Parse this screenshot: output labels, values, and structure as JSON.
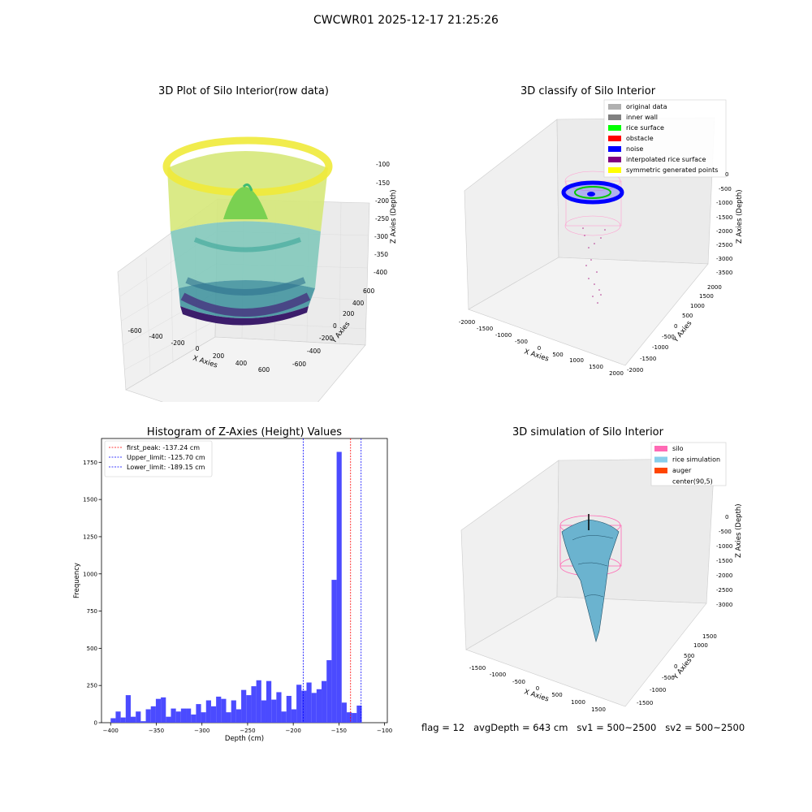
{
  "figure": {
    "suptitle": "CWCWR01 2025-12-17 21:25:26",
    "status": "flag = 12   avgDepth = 643 cm   sv1 = 500~2500   sv2 = 500~2500"
  },
  "panels": {
    "raw": {
      "title": "3D Plot of Silo Interior(row data)",
      "xlabel": "X Axies",
      "ylabel": "Y Axies",
      "zlabel": "Z Axies (Depth)",
      "xticks": [
        "-600",
        "-400",
        "-200",
        "0",
        "200",
        "400",
        "600"
      ],
      "yticks": [
        "-600",
        "-400",
        "-200",
        "0",
        "200",
        "400",
        "600"
      ],
      "zticks": [
        "-100",
        "-150",
        "-200",
        "-250",
        "-300",
        "-350",
        "-400"
      ]
    },
    "classify": {
      "title": "3D classify of Silo Interior",
      "xlabel": "X Axies",
      "ylabel": "Y Axies",
      "zlabel": "Z Axies (Depth)",
      "xticks": [
        "-2000",
        "-1500",
        "-1000",
        "-500",
        "0",
        "500",
        "1000",
        "1500",
        "2000"
      ],
      "yticks": [
        "-2000",
        "-1500",
        "-1000",
        "-500",
        "0",
        "500",
        "1000",
        "1500",
        "2000"
      ],
      "zticks": [
        "0",
        "-500",
        "-1000",
        "-1500",
        "-2000",
        "-2500",
        "-3000",
        "-3500"
      ],
      "legend": [
        {
          "label": "original data",
          "color": "#b0b0b0"
        },
        {
          "label": "inner wall",
          "color": "#808080"
        },
        {
          "label": "rice surface",
          "color": "#00ff00"
        },
        {
          "label": "obstacle",
          "color": "#ff0000"
        },
        {
          "label": "noise",
          "color": "#0000ff"
        },
        {
          "label": "interpolated rice surface",
          "color": "#800080"
        },
        {
          "label": "symmetric generated points",
          "color": "#ffff00"
        }
      ]
    },
    "simulation": {
      "title": "3D simulation of Silo Interior",
      "xlabel": "X Axies",
      "ylabel": "Y Axies",
      "zlabel": "Z Axies (Depth)",
      "xticks": [
        "-1500",
        "-1000",
        "-500",
        "0",
        "500",
        "1000",
        "1500"
      ],
      "yticks": [
        "-1500",
        "-1000",
        "-500",
        "0",
        "500",
        "1000",
        "1500"
      ],
      "zticks": [
        "0",
        "-500",
        "-1000",
        "-1500",
        "-2000",
        "-2500",
        "-3000"
      ],
      "legend": [
        {
          "label": "silo",
          "color": "#ff69b4"
        },
        {
          "label": "rice simulation",
          "color": "#87ceeb"
        },
        {
          "label": "auger",
          "color": "#ff4500"
        },
        {
          "label": "center(90,5)",
          "color": "none"
        }
      ]
    }
  },
  "chart_data": [
    {
      "type": "histogram",
      "title": "Histogram of Z-Axies (Height) Values",
      "xlabel": "Depth (cm)",
      "ylabel": "Frequency",
      "xlim": [
        -410,
        -97
      ],
      "ylim": [
        0,
        1910
      ],
      "xticks": [
        -400,
        -350,
        -300,
        -250,
        -200,
        -150,
        -100
      ],
      "yticks": [
        0,
        250,
        500,
        750,
        1000,
        1250,
        1500,
        1750
      ],
      "bar_color": "#4b4bff",
      "bin_start": -400,
      "bin_width": 5.5,
      "counts": [
        30,
        75,
        35,
        185,
        40,
        75,
        10,
        90,
        110,
        160,
        170,
        40,
        95,
        75,
        95,
        95,
        55,
        125,
        70,
        150,
        110,
        175,
        160,
        70,
        150,
        90,
        220,
        185,
        245,
        285,
        150,
        280,
        155,
        205,
        75,
        180,
        90,
        255,
        215,
        270,
        200,
        225,
        280,
        420,
        960,
        1820,
        135,
        70,
        65,
        115
      ],
      "vlines": [
        {
          "label": "first_peak: -137.24 cm",
          "x": -137.24,
          "color": "#ff0000"
        },
        {
          "label": "Upper_limit: -125.70 cm",
          "x": -125.7,
          "color": "#0000ff"
        },
        {
          "label": "Lower_limit: -189.15 cm",
          "x": -189.15,
          "color": "#0000ff"
        }
      ],
      "legend_position": "upper left"
    }
  ]
}
